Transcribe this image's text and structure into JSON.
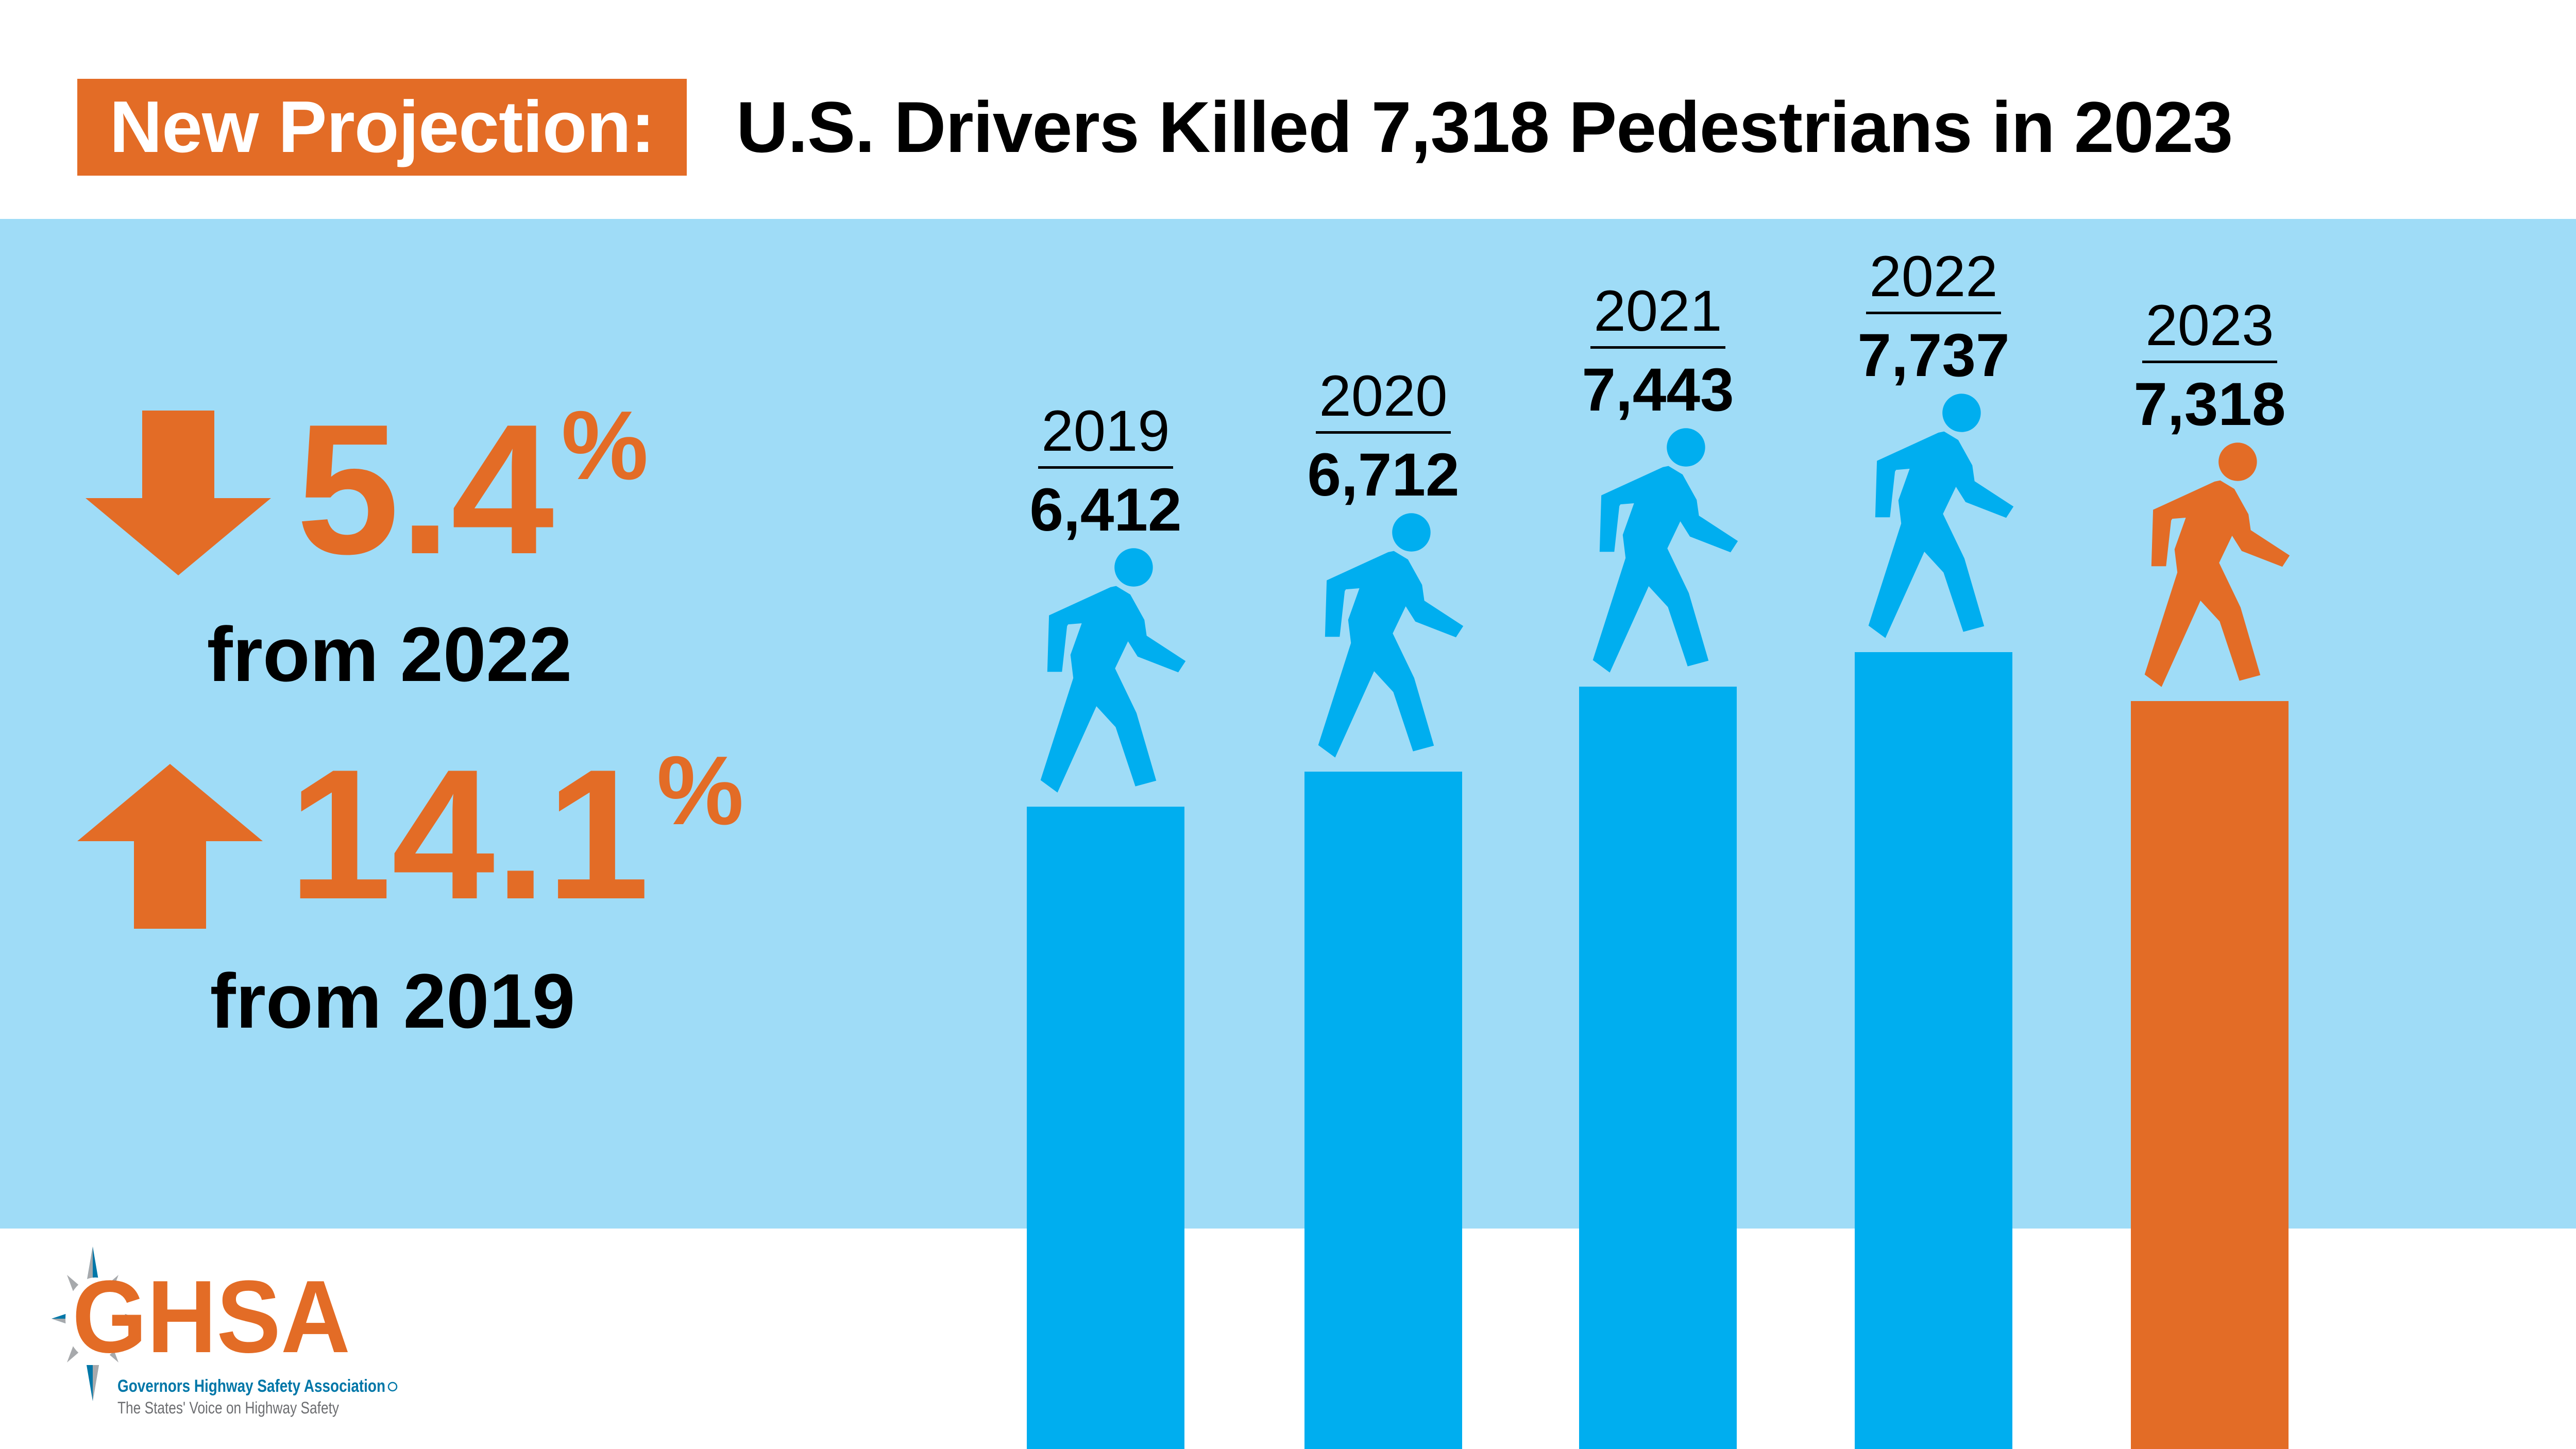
{
  "header": {
    "badge": "New Projection:",
    "title": "U.S. Drivers Killed 7,318 Pedestrians in 2023"
  },
  "stats": [
    {
      "direction": "down",
      "value": "5.4",
      "unit": "%",
      "label": "from 2022",
      "icon": "arrow-down-icon"
    },
    {
      "direction": "up",
      "value": "14.1",
      "unit": "%",
      "label": "from 2019",
      "icon": "arrow-up-icon"
    }
  ],
  "colors": {
    "orange": "#E36C26",
    "bar_blue": "#00AEEF",
    "background_blue": "#9FDCF7"
  },
  "chart_data": {
    "type": "bar",
    "categories": [
      "2019",
      "2020",
      "2021",
      "2022",
      "2023"
    ],
    "values": [
      6412,
      6712,
      7443,
      7737,
      7318
    ],
    "value_labels": [
      "6,412",
      "6,712",
      "7,443",
      "7,737",
      "7,318"
    ],
    "highlight": "2023",
    "bar_colors": [
      "#00AEEF",
      "#00AEEF",
      "#00AEEF",
      "#00AEEF",
      "#E36C26"
    ],
    "icon": "pedestrian-walking-icon",
    "title": "",
    "xlabel": "",
    "ylabel": "",
    "grid": false
  },
  "logo": {
    "name": "GHSA",
    "full_name": "Governors Highway Safety Association",
    "tagline": "The States' Voice on Highway Safety"
  }
}
